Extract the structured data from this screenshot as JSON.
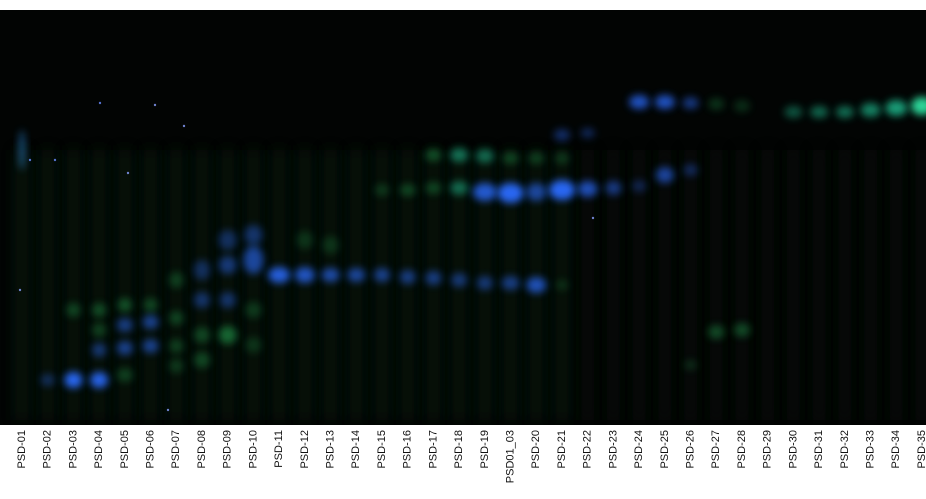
{
  "lanes": [
    "PSD-01",
    "PSD-02",
    "PSD-03",
    "PSD-04",
    "PSD-05",
    "PSD-06",
    "PSD-07",
    "PSD-08",
    "PSD-09",
    "PSD-10",
    "PSD-11",
    "PSD-12",
    "PSD-13",
    "PSD-14",
    "PSD-15",
    "PSD-16",
    "PSD-17",
    "PSD-18",
    "PSD-19",
    "PSD01_03",
    "PSD-20",
    "PSD-21",
    "PSD-22",
    "PSD-23",
    "PSD-24",
    "PSD-25",
    "PSD-26",
    "PSD-27",
    "PSD-28",
    "PSD-29",
    "PSD-30",
    "PSD-31",
    "PSD-32",
    "PSD-33",
    "PSD-34",
    "PSD-35"
  ]
}
